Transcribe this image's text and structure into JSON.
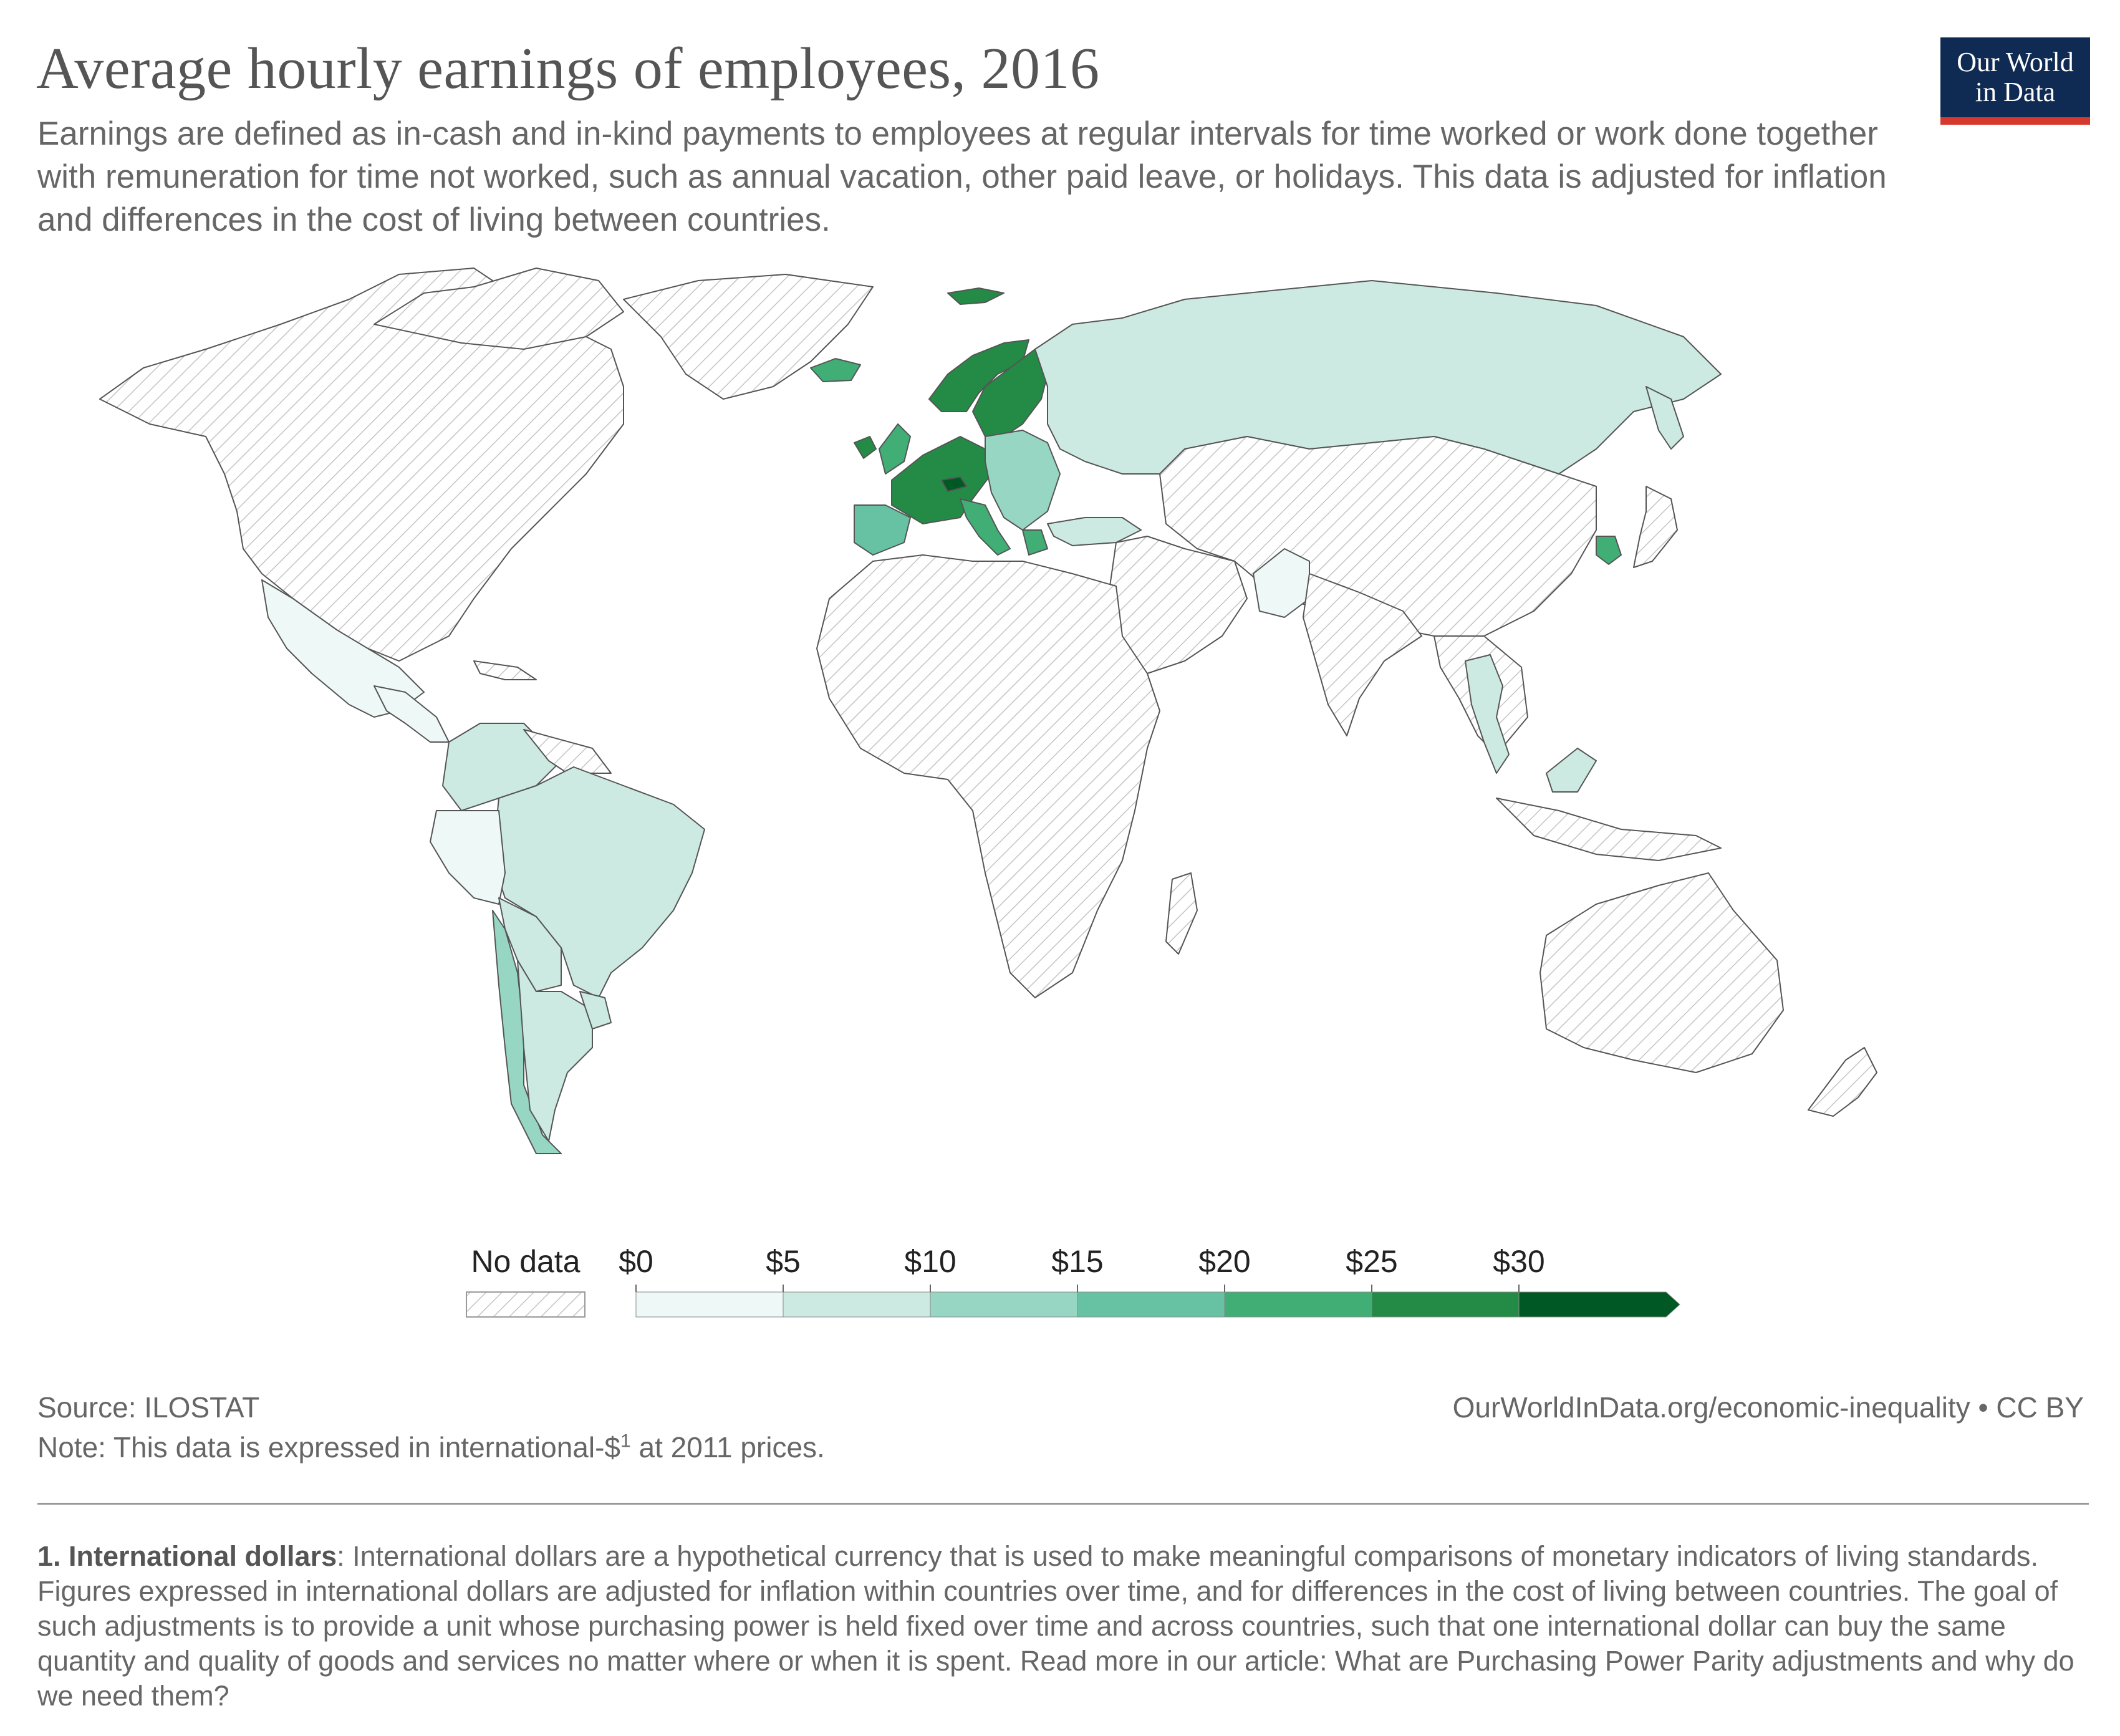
{
  "header": {
    "title": "Average hourly earnings of employees, 2016",
    "subtitle": "Earnings are defined as in-cash and in-kind payments to employees at regular intervals for time worked or work done together with remuneration for time not worked, such as annual vacation, other paid leave, or holidays. This data is adjusted for inflation and differences in the cost of living between countries."
  },
  "logo": {
    "line1": "Our World",
    "line2": "in Data",
    "bg_color": "#102b53",
    "accent_color": "#d6382e"
  },
  "legend": {
    "no_data_label": "No data",
    "bins": [
      {
        "label": "$0",
        "from": 0,
        "to": 5,
        "color": "#eef8f7"
      },
      {
        "label": "$5",
        "from": 5,
        "to": 10,
        "color": "#cceae1"
      },
      {
        "label": "$10",
        "from": 10,
        "to": 15,
        "color": "#97d6c3"
      },
      {
        "label": "$15",
        "from": 15,
        "to": 20,
        "color": "#66c2a3"
      },
      {
        "label": "$20",
        "from": 20,
        "to": 25,
        "color": "#41ae76"
      },
      {
        "label": "$25",
        "from": 25,
        "to": 30,
        "color": "#238b45"
      },
      {
        "label": "$30",
        "from": 30,
        "to": null,
        "color": "#005824"
      }
    ]
  },
  "map_data": {
    "year": 2016,
    "unit": "international-$ per hour",
    "regions": [
      {
        "id": "north-america",
        "value": null
      },
      {
        "id": "greenland",
        "value": null
      },
      {
        "id": "mexico",
        "value": 3
      },
      {
        "id": "central-america",
        "value": 3
      },
      {
        "id": "colombia-venezuela",
        "value": 6
      },
      {
        "id": "peru",
        "value": 4
      },
      {
        "id": "brazil",
        "value": 8
      },
      {
        "id": "bolivia-paraguay",
        "value": 7
      },
      {
        "id": "argentina",
        "value": 8
      },
      {
        "id": "chile",
        "value": 13
      },
      {
        "id": "uruguay",
        "value": 7
      },
      {
        "id": "iceland",
        "value": 22
      },
      {
        "id": "norway",
        "value": 28
      },
      {
        "id": "sweden-finland",
        "value": 25
      },
      {
        "id": "uk",
        "value": 23
      },
      {
        "id": "ireland",
        "value": 28
      },
      {
        "id": "western-europe",
        "value": 25
      },
      {
        "id": "switzerland",
        "value": 33
      },
      {
        "id": "iberia",
        "value": 19
      },
      {
        "id": "italy",
        "value": 21
      },
      {
        "id": "eastern-europe",
        "value": 10
      },
      {
        "id": "russia",
        "value": 7
      },
      {
        "id": "turkey",
        "value": 7
      },
      {
        "id": "pakistan",
        "value": 3
      },
      {
        "id": "thailand",
        "value": 6
      },
      {
        "id": "south-korea",
        "value": 21
      },
      {
        "id": "malaysia",
        "value": 7
      },
      {
        "id": "china-central-asia",
        "value": null
      },
      {
        "id": "africa",
        "value": null
      },
      {
        "id": "middle-east",
        "value": null
      },
      {
        "id": "india",
        "value": null
      },
      {
        "id": "australia",
        "value": null
      },
      {
        "id": "japan",
        "value": null
      },
      {
        "id": "indonesia",
        "value": null
      },
      {
        "id": "new-zealand",
        "value": null
      }
    ]
  },
  "footer": {
    "source": "Source: ILOSTAT",
    "note_prefix": "Note: This data is expressed in international-$",
    "note_sup": "1",
    "note_suffix": " at 2011 prices.",
    "url": "OurWorldInData.org/economic-inequality • CC BY"
  },
  "footnote": {
    "heading": "1. International dollars",
    "text": ": International dollars are a hypothetical currency that is used to make meaningful comparisons of monetary indicators of living standards. Figures expressed in international dollars are adjusted for inflation within countries over time, and for differences in the cost of living between countries. The goal of such adjustments is to provide a unit whose purchasing power is held fixed over time and across countries, such that one international dollar can buy the same quantity and quality of goods and services no matter where or when it is spent. Read more in our article: What are Purchasing Power Parity adjustments and why do we need them?"
  }
}
